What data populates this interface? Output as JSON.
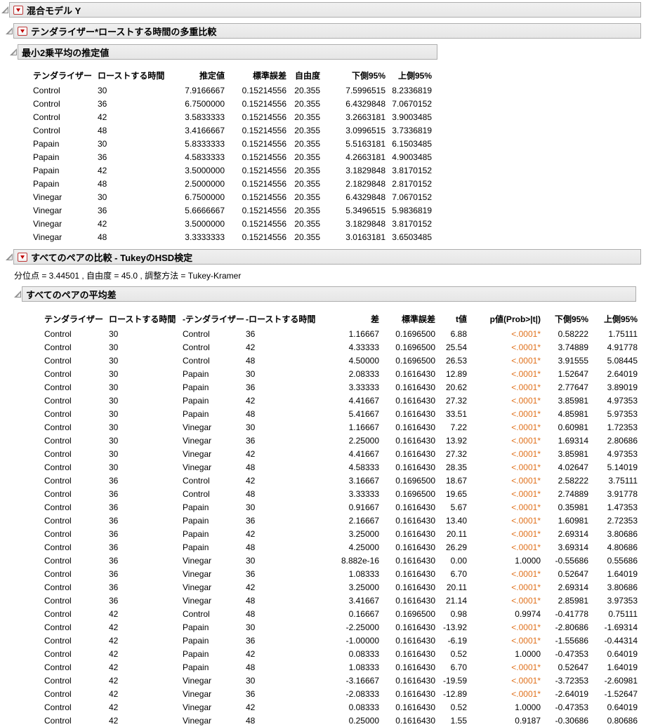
{
  "colors": {
    "significant": "#e0711c",
    "bar_bg": "#ebebeb",
    "bar_border": "#adadad",
    "menu_red": "#c00000"
  },
  "icons": {
    "disclosure_triangle": "open-outline-triangle",
    "red_triangle_menu": "red-down-triangle"
  },
  "outlines": {
    "model_title": "混合モデル Y",
    "multicomp_title": "テンダライザー*ローストする時間の多重比較",
    "lsmeans_title": "最小2乗平均の推定値",
    "tukey_title": "すべてのペアの比較 - TukeyのHSD検定",
    "meandiff_title": "すべてのペアの平均差"
  },
  "tukey_note": "分位点 = 3.44501 , 自由度 = 45.0 , 調整方法 = Tukey-Kramer",
  "lsmeans_table": {
    "columns": [
      "テンダライザー",
      "ローストする時間",
      "推定値",
      "標準誤差",
      "自由度",
      "下側95%",
      "上側95%"
    ],
    "aligns": [
      "l",
      "l",
      "r",
      "r",
      "r",
      "r",
      "r"
    ],
    "rows": [
      [
        "Control",
        "30",
        "7.9166667",
        "0.15214556",
        "20.355",
        "7.5996515",
        "8.2336819"
      ],
      [
        "Control",
        "36",
        "6.7500000",
        "0.15214556",
        "20.355",
        "6.4329848",
        "7.0670152"
      ],
      [
        "Control",
        "42",
        "3.5833333",
        "0.15214556",
        "20.355",
        "3.2663181",
        "3.9003485"
      ],
      [
        "Control",
        "48",
        "3.4166667",
        "0.15214556",
        "20.355",
        "3.0996515",
        "3.7336819"
      ],
      [
        "Papain",
        "30",
        "5.8333333",
        "0.15214556",
        "20.355",
        "5.5163181",
        "6.1503485"
      ],
      [
        "Papain",
        "36",
        "4.5833333",
        "0.15214556",
        "20.355",
        "4.2663181",
        "4.9003485"
      ],
      [
        "Papain",
        "42",
        "3.5000000",
        "0.15214556",
        "20.355",
        "3.1829848",
        "3.8170152"
      ],
      [
        "Papain",
        "48",
        "2.5000000",
        "0.15214556",
        "20.355",
        "2.1829848",
        "2.8170152"
      ],
      [
        "Vinegar",
        "30",
        "6.7500000",
        "0.15214556",
        "20.355",
        "6.4329848",
        "7.0670152"
      ],
      [
        "Vinegar",
        "36",
        "5.6666667",
        "0.15214556",
        "20.355",
        "5.3496515",
        "5.9836819"
      ],
      [
        "Vinegar",
        "42",
        "3.5000000",
        "0.15214556",
        "20.355",
        "3.1829848",
        "3.8170152"
      ],
      [
        "Vinegar",
        "48",
        "3.3333333",
        "0.15214556",
        "20.355",
        "3.0163181",
        "3.6503485"
      ]
    ]
  },
  "meandiff_table": {
    "columns": [
      "テンダライザー",
      "ローストする時間",
      "-テンダライザー",
      "-ローストする時間",
      "差",
      "標準誤差",
      "t値",
      "p値(Prob>|t|)",
      "下側95%",
      "上側95%"
    ],
    "aligns": [
      "l",
      "l",
      "l",
      "l",
      "r",
      "r",
      "r",
      "r",
      "r",
      "r"
    ],
    "p_col": 7,
    "rows": [
      {
        "cells": [
          "Control",
          "30",
          "Control",
          "36",
          "1.16667",
          "0.1696500",
          "6.88",
          "<.0001*",
          "0.58222",
          "1.75111"
        ],
        "sig": true
      },
      {
        "cells": [
          "Control",
          "30",
          "Control",
          "42",
          "4.33333",
          "0.1696500",
          "25.54",
          "<.0001*",
          "3.74889",
          "4.91778"
        ],
        "sig": true
      },
      {
        "cells": [
          "Control",
          "30",
          "Control",
          "48",
          "4.50000",
          "0.1696500",
          "26.53",
          "<.0001*",
          "3.91555",
          "5.08445"
        ],
        "sig": true
      },
      {
        "cells": [
          "Control",
          "30",
          "Papain",
          "30",
          "2.08333",
          "0.1616430",
          "12.89",
          "<.0001*",
          "1.52647",
          "2.64019"
        ],
        "sig": true
      },
      {
        "cells": [
          "Control",
          "30",
          "Papain",
          "36",
          "3.33333",
          "0.1616430",
          "20.62",
          "<.0001*",
          "2.77647",
          "3.89019"
        ],
        "sig": true
      },
      {
        "cells": [
          "Control",
          "30",
          "Papain",
          "42",
          "4.41667",
          "0.1616430",
          "27.32",
          "<.0001*",
          "3.85981",
          "4.97353"
        ],
        "sig": true
      },
      {
        "cells": [
          "Control",
          "30",
          "Papain",
          "48",
          "5.41667",
          "0.1616430",
          "33.51",
          "<.0001*",
          "4.85981",
          "5.97353"
        ],
        "sig": true
      },
      {
        "cells": [
          "Control",
          "30",
          "Vinegar",
          "30",
          "1.16667",
          "0.1616430",
          "7.22",
          "<.0001*",
          "0.60981",
          "1.72353"
        ],
        "sig": true
      },
      {
        "cells": [
          "Control",
          "30",
          "Vinegar",
          "36",
          "2.25000",
          "0.1616430",
          "13.92",
          "<.0001*",
          "1.69314",
          "2.80686"
        ],
        "sig": true
      },
      {
        "cells": [
          "Control",
          "30",
          "Vinegar",
          "42",
          "4.41667",
          "0.1616430",
          "27.32",
          "<.0001*",
          "3.85981",
          "4.97353"
        ],
        "sig": true
      },
      {
        "cells": [
          "Control",
          "30",
          "Vinegar",
          "48",
          "4.58333",
          "0.1616430",
          "28.35",
          "<.0001*",
          "4.02647",
          "5.14019"
        ],
        "sig": true
      },
      {
        "cells": [
          "Control",
          "36",
          "Control",
          "42",
          "3.16667",
          "0.1696500",
          "18.67",
          "<.0001*",
          "2.58222",
          "3.75111"
        ],
        "sig": true
      },
      {
        "cells": [
          "Control",
          "36",
          "Control",
          "48",
          "3.33333",
          "0.1696500",
          "19.65",
          "<.0001*",
          "2.74889",
          "3.91778"
        ],
        "sig": true
      },
      {
        "cells": [
          "Control",
          "36",
          "Papain",
          "30",
          "0.91667",
          "0.1616430",
          "5.67",
          "<.0001*",
          "0.35981",
          "1.47353"
        ],
        "sig": true
      },
      {
        "cells": [
          "Control",
          "36",
          "Papain",
          "36",
          "2.16667",
          "0.1616430",
          "13.40",
          "<.0001*",
          "1.60981",
          "2.72353"
        ],
        "sig": true
      },
      {
        "cells": [
          "Control",
          "36",
          "Papain",
          "42",
          "3.25000",
          "0.1616430",
          "20.11",
          "<.0001*",
          "2.69314",
          "3.80686"
        ],
        "sig": true
      },
      {
        "cells": [
          "Control",
          "36",
          "Papain",
          "48",
          "4.25000",
          "0.1616430",
          "26.29",
          "<.0001*",
          "3.69314",
          "4.80686"
        ],
        "sig": true
      },
      {
        "cells": [
          "Control",
          "36",
          "Vinegar",
          "30",
          "8.882e-16",
          "0.1616430",
          "0.00",
          "1.0000",
          "-0.55686",
          "0.55686"
        ],
        "sig": false
      },
      {
        "cells": [
          "Control",
          "36",
          "Vinegar",
          "36",
          "1.08333",
          "0.1616430",
          "6.70",
          "<.0001*",
          "0.52647",
          "1.64019"
        ],
        "sig": true
      },
      {
        "cells": [
          "Control",
          "36",
          "Vinegar",
          "42",
          "3.25000",
          "0.1616430",
          "20.11",
          "<.0001*",
          "2.69314",
          "3.80686"
        ],
        "sig": true
      },
      {
        "cells": [
          "Control",
          "36",
          "Vinegar",
          "48",
          "3.41667",
          "0.1616430",
          "21.14",
          "<.0001*",
          "2.85981",
          "3.97353"
        ],
        "sig": true
      },
      {
        "cells": [
          "Control",
          "42",
          "Control",
          "48",
          "0.16667",
          "0.1696500",
          "0.98",
          "0.9974",
          "-0.41778",
          "0.75111"
        ],
        "sig": false
      },
      {
        "cells": [
          "Control",
          "42",
          "Papain",
          "30",
          "-2.25000",
          "0.1616430",
          "-13.92",
          "<.0001*",
          "-2.80686",
          "-1.69314"
        ],
        "sig": true
      },
      {
        "cells": [
          "Control",
          "42",
          "Papain",
          "36",
          "-1.00000",
          "0.1616430",
          "-6.19",
          "<.0001*",
          "-1.55686",
          "-0.44314"
        ],
        "sig": true
      },
      {
        "cells": [
          "Control",
          "42",
          "Papain",
          "42",
          "0.08333",
          "0.1616430",
          "0.52",
          "1.0000",
          "-0.47353",
          "0.64019"
        ],
        "sig": false
      },
      {
        "cells": [
          "Control",
          "42",
          "Papain",
          "48",
          "1.08333",
          "0.1616430",
          "6.70",
          "<.0001*",
          "0.52647",
          "1.64019"
        ],
        "sig": true
      },
      {
        "cells": [
          "Control",
          "42",
          "Vinegar",
          "30",
          "-3.16667",
          "0.1616430",
          "-19.59",
          "<.0001*",
          "-3.72353",
          "-2.60981"
        ],
        "sig": true
      },
      {
        "cells": [
          "Control",
          "42",
          "Vinegar",
          "36",
          "-2.08333",
          "0.1616430",
          "-12.89",
          "<.0001*",
          "-2.64019",
          "-1.52647"
        ],
        "sig": true
      },
      {
        "cells": [
          "Control",
          "42",
          "Vinegar",
          "42",
          "0.08333",
          "0.1616430",
          "0.52",
          "1.0000",
          "-0.47353",
          "0.64019"
        ],
        "sig": false
      },
      {
        "cells": [
          "Control",
          "42",
          "Vinegar",
          "48",
          "0.25000",
          "0.1616430",
          "1.55",
          "0.9187",
          "-0.30686",
          "0.80686"
        ],
        "sig": false
      }
    ]
  }
}
